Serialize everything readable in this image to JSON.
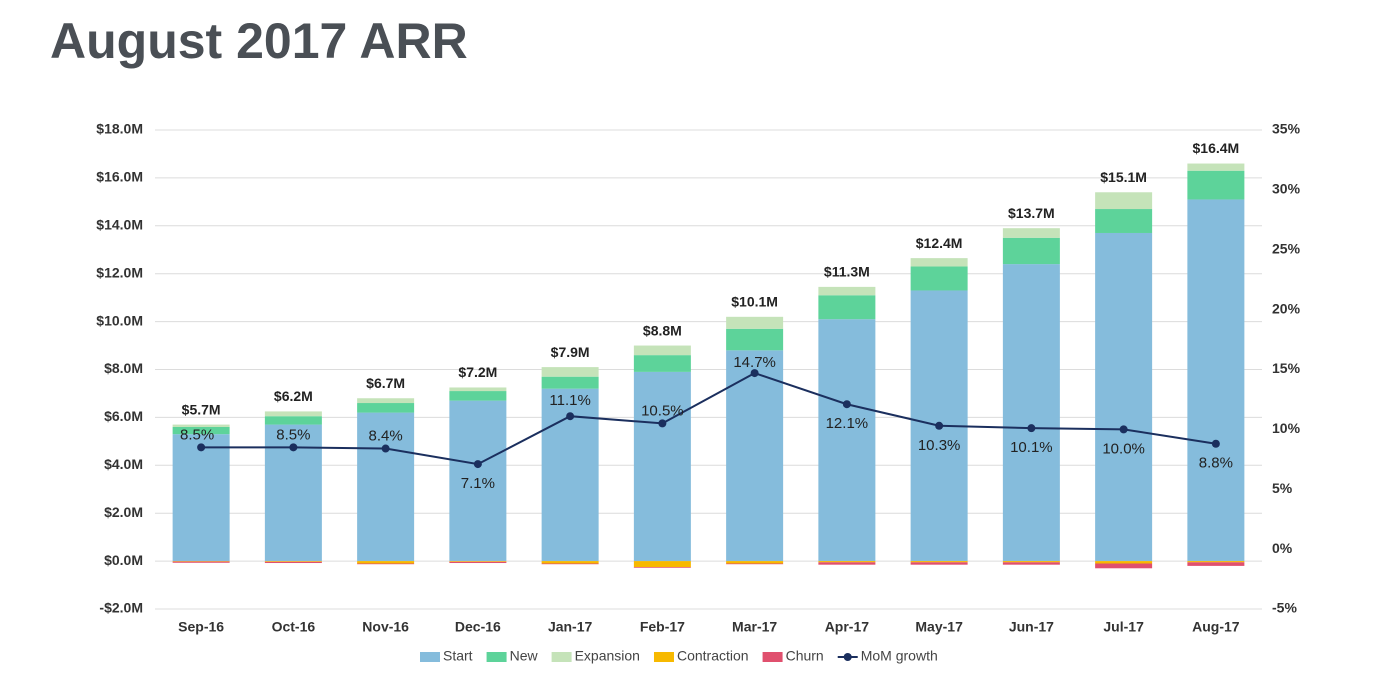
{
  "chart_data": {
    "type": "bar",
    "stacked": true,
    "title": "August 2017 ARR",
    "categories": [
      "Sep-16",
      "Oct-16",
      "Nov-16",
      "Dec-16",
      "Jan-17",
      "Feb-17",
      "Mar-17",
      "Apr-17",
      "May-17",
      "Jun-17",
      "Jul-17",
      "Aug-17"
    ],
    "series": [
      {
        "name": "Start",
        "color": "#85bcdc",
        "values": [
          5.3,
          5.7,
          6.2,
          6.7,
          7.2,
          7.9,
          8.8,
          10.1,
          11.3,
          12.4,
          13.7,
          15.1
        ]
      },
      {
        "name": "New",
        "color": "#5dd39a",
        "values": [
          0.3,
          0.35,
          0.4,
          0.4,
          0.5,
          0.7,
          0.9,
          1.0,
          1.0,
          1.1,
          1.0,
          1.2
        ]
      },
      {
        "name": "Expansion",
        "color": "#c5e3b9",
        "values": [
          0.1,
          0.2,
          0.2,
          0.15,
          0.4,
          0.4,
          0.5,
          0.35,
          0.35,
          0.4,
          0.7,
          0.3
        ]
      },
      {
        "name": "Contraction",
        "color": "#f7b900",
        "values": [
          -0.02,
          -0.03,
          -0.1,
          -0.03,
          -0.1,
          -0.25,
          -0.1,
          -0.05,
          -0.05,
          -0.05,
          -0.1,
          -0.05
        ]
      },
      {
        "name": "Churn",
        "color": "#e0506e",
        "values": [
          -0.05,
          -0.05,
          -0.03,
          -0.05,
          -0.03,
          -0.03,
          -0.03,
          -0.1,
          -0.1,
          -0.1,
          -0.2,
          -0.15
        ]
      },
      {
        "name": "MoM growth",
        "color": "#1b2f5e",
        "type": "line",
        "axis": "y2",
        "values": [
          8.5,
          8.5,
          8.4,
          7.1,
          11.1,
          10.5,
          14.7,
          12.1,
          10.3,
          10.1,
          10.0,
          8.8
        ],
        "value_labels": [
          "8.5%",
          "8.5%",
          "8.4%",
          "7.1%",
          "11.1%",
          "10.5%",
          "14.7%",
          "12.1%",
          "10.3%",
          "10.1%",
          "10.0%",
          "8.8%"
        ]
      }
    ],
    "totals": {
      "values": [
        5.7,
        6.2,
        6.7,
        7.2,
        7.9,
        8.8,
        10.1,
        11.3,
        12.4,
        13.7,
        15.1,
        16.4
      ],
      "value_labels": [
        "$5.7M",
        "$6.2M",
        "$6.7M",
        "$7.2M",
        "$7.9M",
        "$8.8M",
        "$10.1M",
        "$11.3M",
        "$12.4M",
        "$13.7M",
        "$15.1M",
        "$16.4M"
      ]
    },
    "ylim": [
      -2,
      18
    ],
    "yticks": [
      {
        "value": -2,
        "label": "-$2.0M"
      },
      {
        "value": 0,
        "label": "$0.0M"
      },
      {
        "value": 2,
        "label": "$2.0M"
      },
      {
        "value": 4,
        "label": "$4.0M"
      },
      {
        "value": 6,
        "label": "$6.0M"
      },
      {
        "value": 8,
        "label": "$8.0M"
      },
      {
        "value": 10,
        "label": "$10.0M"
      },
      {
        "value": 12,
        "label": "$12.0M"
      },
      {
        "value": 14,
        "label": "$14.0M"
      },
      {
        "value": 16,
        "label": "$16.0M"
      },
      {
        "value": 18,
        "label": "$18.0M"
      }
    ],
    "y2lim": [
      -5,
      35
    ],
    "y2ticks": [
      {
        "value": -5,
        "label": "-5%"
      },
      {
        "value": 0,
        "label": "0%"
      },
      {
        "value": 5,
        "label": "5%"
      },
      {
        "value": 10,
        "label": "10%"
      },
      {
        "value": 15,
        "label": "15%"
      },
      {
        "value": 20,
        "label": "20%"
      },
      {
        "value": 25,
        "label": "25%"
      },
      {
        "value": 30,
        "label": "30%"
      },
      {
        "value": 35,
        "label": "35%"
      }
    ],
    "grid": true,
    "legend": "bottom"
  }
}
